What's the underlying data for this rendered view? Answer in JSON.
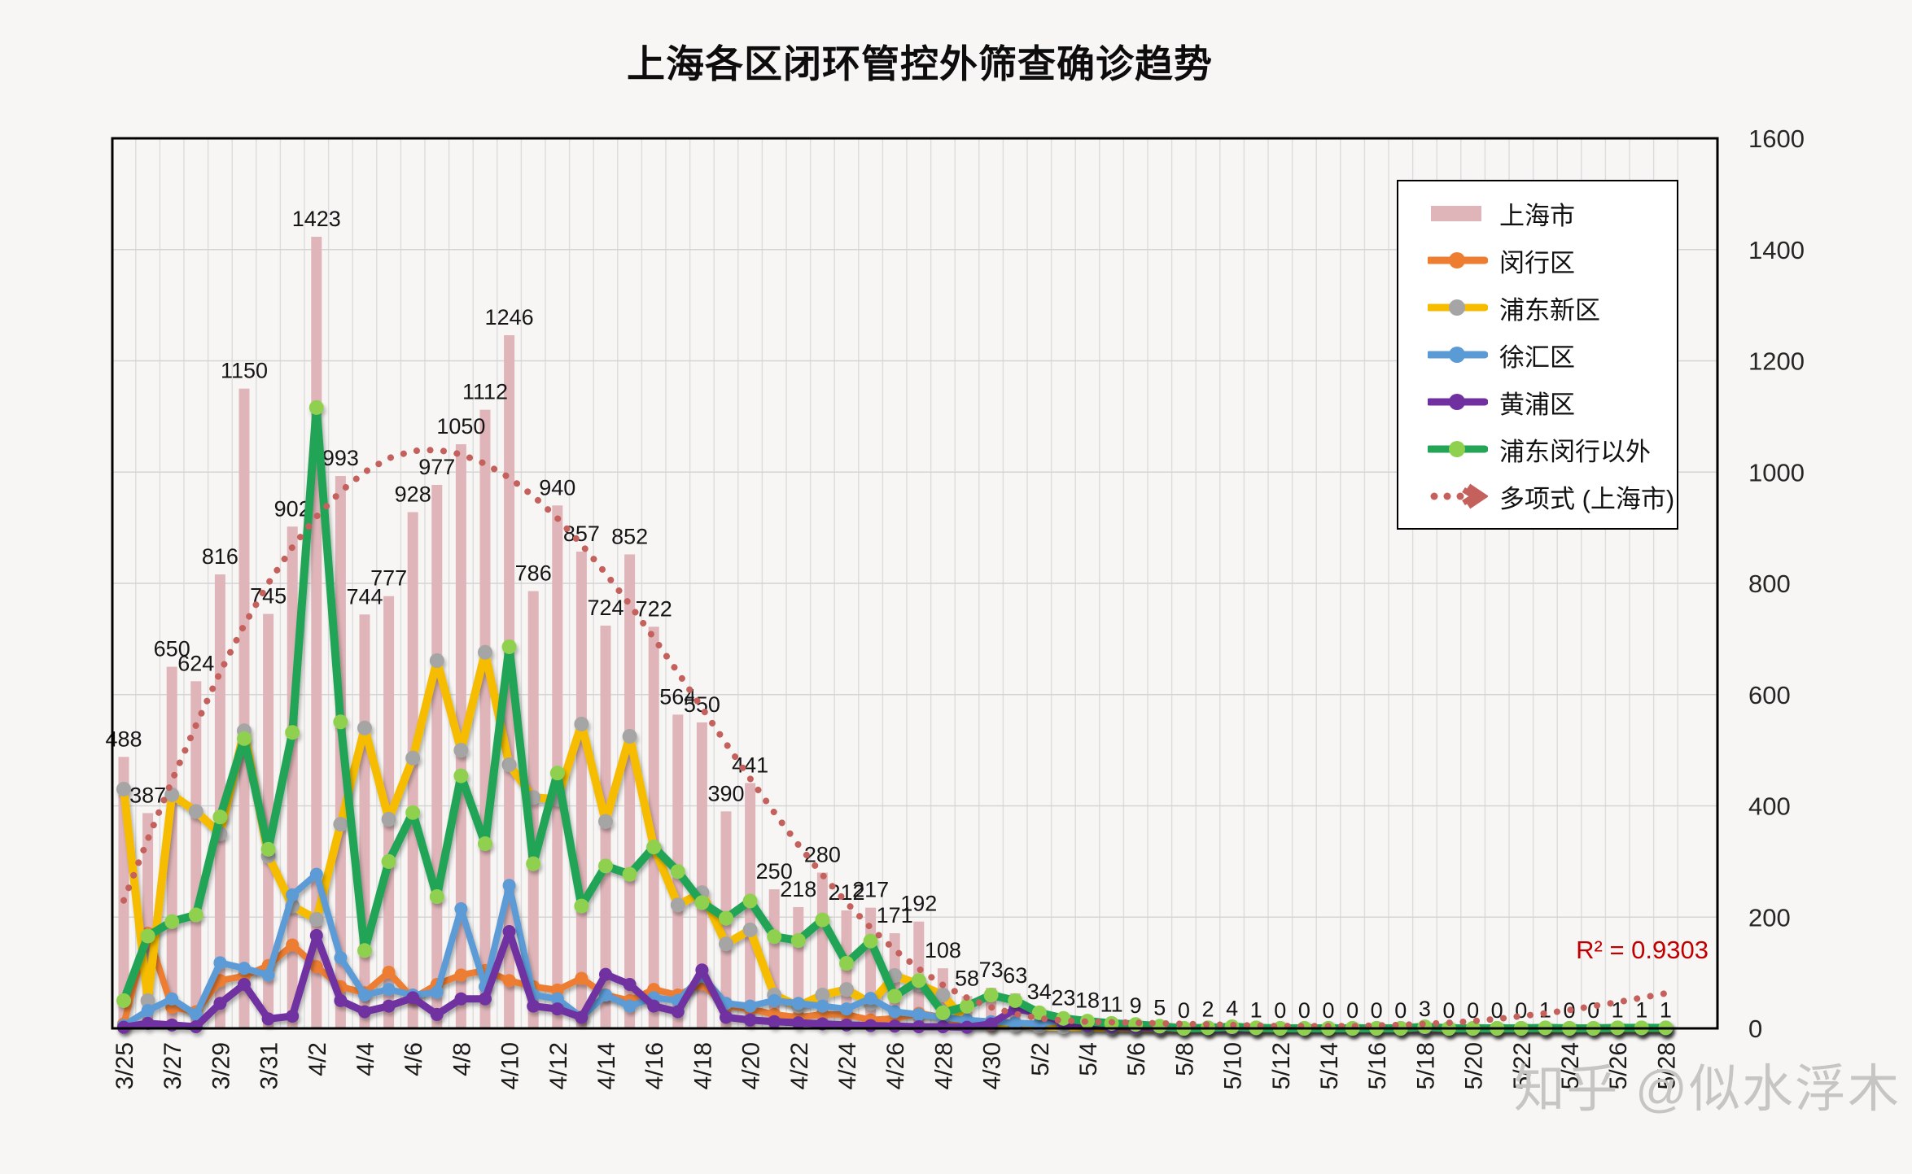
{
  "title": "上海各区闭环管控外筛查确诊趋势",
  "r2_label": "R² = 0.9303",
  "watermark": "知乎 @似水浮木",
  "colors": {
    "bar": "#DFB5B9",
    "minhang": "#ED7D31",
    "pudong_line": "#F5BC00",
    "pudong_marker": "#A5A5A5",
    "xuhui": "#5B9BD5",
    "huangpu": "#7030A0",
    "ex_pudong_minhang_line": "#23A456",
    "ex_pudong_minhang_marker": "#8FD14F",
    "trend": "#C4615C",
    "r2_text": "#C00000",
    "grid": "#DCDCDC",
    "axis": "#000000"
  },
  "legend": {
    "items": [
      {
        "key": "shanghai",
        "label": "上海市",
        "swatch": "bar"
      },
      {
        "key": "minhang",
        "label": "闵行区",
        "swatch": "line"
      },
      {
        "key": "pudong",
        "label": "浦东新区",
        "swatch": "line"
      },
      {
        "key": "xuhui",
        "label": "徐汇区",
        "swatch": "line"
      },
      {
        "key": "huangpu",
        "label": "黄浦区",
        "swatch": "line"
      },
      {
        "key": "ex-pudong-minhang",
        "label": "浦东闵行以外",
        "swatch": "line"
      },
      {
        "key": "polynomial-trend",
        "label": "多项式 (上海市)",
        "swatch": "trend"
      }
    ]
  },
  "chart_data": {
    "type": "bar",
    "title": "上海各区闭环管控外筛查确诊趋势",
    "xlabel": "",
    "ylabel": "",
    "ylim": [
      0,
      1600
    ],
    "y_ticks": [
      0,
      200,
      400,
      600,
      800,
      1000,
      1200,
      1400,
      1600
    ],
    "x_tick_every": 2,
    "legend_position": "right-top",
    "grid": true,
    "categories": [
      "3/25",
      "3/26",
      "3/27",
      "3/28",
      "3/29",
      "3/30",
      "3/31",
      "4/1",
      "4/2",
      "4/3",
      "4/4",
      "4/5",
      "4/6",
      "4/7",
      "4/8",
      "4/9",
      "4/10",
      "4/11",
      "4/12",
      "4/13",
      "4/14",
      "4/15",
      "4/16",
      "4/17",
      "4/18",
      "4/19",
      "4/20",
      "4/21",
      "4/22",
      "4/23",
      "4/24",
      "4/25",
      "4/26",
      "4/27",
      "4/28",
      "4/29",
      "4/30",
      "5/1",
      "5/2",
      "5/3",
      "5/4",
      "5/5",
      "5/6",
      "5/7",
      "5/8",
      "5/9",
      "5/10",
      "5/11",
      "5/12",
      "5/13",
      "5/14",
      "5/15",
      "5/16",
      "5/17",
      "5/18",
      "5/19",
      "5/20",
      "5/21",
      "5/22",
      "5/23",
      "5/24",
      "5/25",
      "5/26",
      "5/27",
      "5/28"
    ],
    "series": [
      {
        "key": "shanghai",
        "name": "上海市",
        "type": "bar",
        "color": "#DFB5B9",
        "data_labels": true,
        "values": [
          488,
          387,
          650,
          624,
          816,
          1150,
          745,
          902,
          1423,
          993,
          744,
          777,
          928,
          977,
          1050,
          1112,
          1246,
          786,
          940,
          857,
          724,
          852,
          722,
          564,
          550,
          390,
          441,
          250,
          218,
          280,
          212,
          217,
          171,
          192,
          108,
          58,
          73,
          63,
          34,
          23,
          18,
          11,
          9,
          5,
          0,
          2,
          4,
          1,
          0,
          0,
          0,
          0,
          0,
          0,
          3,
          0,
          0,
          0,
          0,
          1,
          0,
          0,
          1,
          1,
          1
        ]
      },
      {
        "key": "minhang",
        "name": "闵行区",
        "type": "line",
        "color": "#ED7D31",
        "marker": "#ED7D31",
        "width": 8,
        "marker_r": 8,
        "values": [
          8,
          171,
          38,
          30,
          86,
          94,
          113,
          150,
          111,
          75,
          64,
          101,
          54,
          79,
          96,
          104,
          86,
          75,
          69,
          90,
          60,
          50,
          70,
          60,
          80,
          40,
          35,
          25,
          20,
          25,
          25,
          15,
          18,
          27,
          20,
          8,
          5,
          7,
          2,
          2,
          3,
          1,
          1,
          1,
          0,
          0,
          0,
          0,
          0,
          0,
          0,
          0,
          0,
          0,
          0,
          0,
          0,
          0,
          0,
          0,
          0,
          0,
          0,
          0,
          0
        ]
      },
      {
        "key": "pudong",
        "name": "浦东新区",
        "type": "line",
        "color": "#F5BC00",
        "marker": "#A5A5A5",
        "width": 10,
        "marker_r": 9,
        "values": [
          430,
          50,
          420,
          390,
          350,
          535,
          310,
          220,
          196,
          367,
          540,
          376,
          486,
          661,
          500,
          676,
          474,
          415,
          412,
          547,
          372,
          525,
          326,
          222,
          244,
          152,
          177,
          60,
          40,
          60,
          70,
          45,
          95,
          79,
          60,
          10,
          8,
          6,
          4,
          3,
          2,
          1,
          1,
          0,
          0,
          1,
          1,
          0,
          0,
          0,
          0,
          0,
          0,
          0,
          0,
          0,
          0,
          0,
          0,
          0,
          0,
          0,
          0,
          0,
          0
        ]
      },
      {
        "key": "xuhui",
        "name": "徐汇区",
        "type": "line",
        "color": "#5B9BD5",
        "marker": "#5B9BD5",
        "width": 8,
        "marker_r": 8,
        "values": [
          5,
          32,
          53,
          25,
          118,
          108,
          96,
          240,
          277,
          127,
          60,
          70,
          60,
          65,
          215,
          75,
          257,
          60,
          53,
          20,
          60,
          40,
          55,
          50,
          94,
          45,
          40,
          50,
          45,
          40,
          35,
          54,
          30,
          25,
          20,
          15,
          12,
          10,
          8,
          15,
          6,
          4,
          2,
          1,
          0,
          0,
          0,
          0,
          0,
          0,
          0,
          0,
          0,
          0,
          0,
          0,
          0,
          0,
          0,
          0,
          0,
          0,
          0,
          0,
          0
        ]
      },
      {
        "key": "huangpu",
        "name": "黄浦区",
        "type": "line",
        "color": "#7030A0",
        "marker": "#7030A0",
        "width": 9,
        "marker_r": 8,
        "values": [
          2,
          9,
          6,
          3,
          45,
          79,
          17,
          22,
          167,
          50,
          30,
          40,
          55,
          25,
          53,
          53,
          174,
          40,
          35,
          20,
          97,
          79,
          40,
          30,
          105,
          20,
          15,
          12,
          10,
          8,
          6,
          5,
          4,
          3,
          3,
          2,
          8,
          35,
          28,
          10,
          5,
          3,
          2,
          1,
          0,
          0,
          0,
          0,
          0,
          0,
          0,
          0,
          0,
          0,
          0,
          0,
          0,
          0,
          0,
          0,
          0,
          0,
          0,
          0,
          0
        ]
      },
      {
        "key": "ex-pudong-minhang",
        "name": "浦东闵行以外",
        "type": "line",
        "color": "#23A456",
        "marker": "#8FD14F",
        "width": 10,
        "marker_r": 9,
        "values": [
          50,
          166,
          192,
          204,
          380,
          521,
          322,
          532,
          1116,
          551,
          140,
          300,
          388,
          237,
          454,
          332,
          686,
          296,
          459,
          220,
          292,
          277,
          326,
          282,
          226,
          198,
          229,
          165,
          158,
          195,
          117,
          157,
          58,
          86,
          28,
          40,
          60,
          50,
          28,
          18,
          13,
          9,
          7,
          4,
          0,
          1,
          3,
          1,
          0,
          0,
          0,
          0,
          0,
          0,
          3,
          0,
          0,
          0,
          0,
          1,
          0,
          0,
          1,
          1,
          1
        ]
      },
      {
        "key": "polynomial-trend",
        "name": "多项式 (上海市)",
        "type": "trend",
        "color": "#C4615C",
        "width": 8,
        "values": [
          230,
          340,
          445,
          545,
          640,
          725,
          800,
          865,
          920,
          965,
          1000,
          1025,
          1038,
          1040,
          1032,
          1015,
          990,
          957,
          917,
          870,
          818,
          762,
          702,
          640,
          576,
          512,
          449,
          388,
          330,
          276,
          226,
          181,
          141,
          107,
          78,
          55,
          38,
          26,
          18,
          14,
          12,
          11,
          10,
          9,
          8,
          7,
          6,
          5,
          4,
          4,
          4,
          4,
          5,
          6,
          8,
          10,
          13,
          17,
          22,
          27,
          33,
          40,
          47,
          55,
          63
        ]
      }
    ],
    "annotations": [
      {
        "text": "R² = 0.9303",
        "color": "#C00000",
        "position": "right-bottom"
      }
    ]
  }
}
